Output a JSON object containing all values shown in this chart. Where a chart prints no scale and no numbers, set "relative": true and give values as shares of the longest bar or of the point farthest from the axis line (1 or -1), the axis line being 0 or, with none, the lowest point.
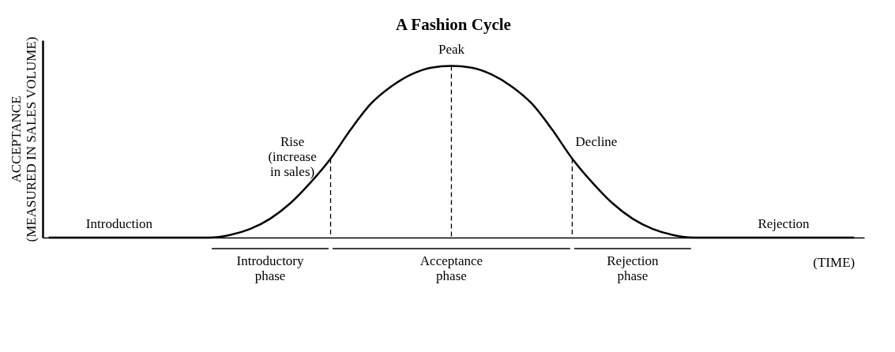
{
  "chart_data": {
    "type": "line",
    "title": "A Fashion Cycle",
    "relative": true,
    "color": "#000000",
    "tick_labels": false,
    "grid": false,
    "marker": "none",
    "line_style": "solid",
    "ylabel": "ACCEPTANCE\n(MEASURED IN SALES VOLUME)",
    "xlabel": "(TIME)",
    "categories": [
      null,
      null,
      null,
      null,
      null,
      null,
      null,
      null,
      null,
      null,
      null,
      null,
      null,
      null,
      null,
      null,
      null,
      null,
      null,
      null,
      null,
      null,
      null,
      null,
      null,
      null,
      null,
      null,
      null,
      null,
      null,
      null,
      null,
      null,
      null,
      null,
      null,
      null,
      null,
      null,
      null
    ],
    "values": [
      0,
      0,
      0,
      0,
      0,
      0,
      0,
      0,
      0,
      0.015,
      0.05,
      0.11,
      0.2,
      0.32,
      0.46,
      0.63,
      0.78,
      0.88,
      0.95,
      0.99,
      1,
      0.99,
      0.95,
      0.88,
      0.78,
      0.63,
      0.46,
      0.32,
      0.2,
      0.11,
      0.05,
      0.015,
      0,
      0,
      0,
      0,
      0,
      0,
      0,
      0,
      0
    ],
    "annotations": [
      "Introduction",
      "Rejection",
      "Rise\n(increase\nin sales)",
      "Peak",
      "Decline",
      "Introductory\nphase",
      "Acceptance\nphase",
      "Rejection\nphase"
    ]
  }
}
